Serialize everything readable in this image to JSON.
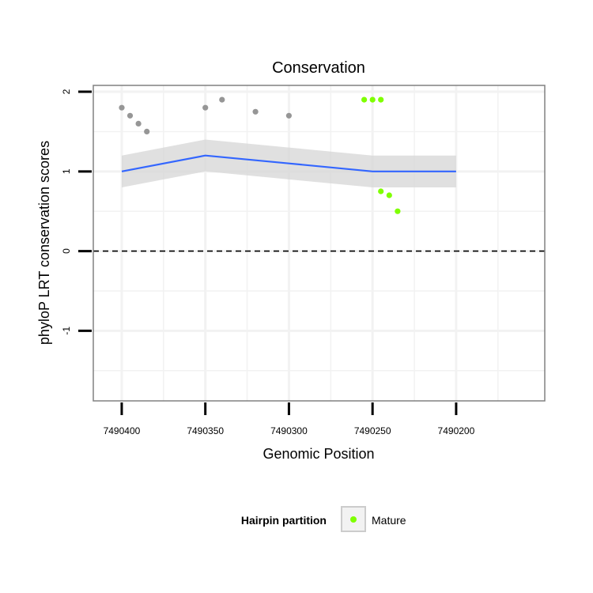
{
  "chart_data": {
    "type": "scatter",
    "title": "Conservation",
    "xlabel": "Genomic Position",
    "ylabel": "phyloP LRT conservation scores",
    "x_reversed": true,
    "xlim": [
      7490417,
      7490147
    ],
    "ylim": [
      -1.88,
      2.08
    ],
    "x_ticks": [
      7490400,
      7490350,
      7490300,
      7490250,
      7490200
    ],
    "x_tick_labels": [
      "7490400",
      "7490350",
      "7490300",
      "7490250",
      "7490200"
    ],
    "y_ticks": [
      -1,
      0,
      1,
      2
    ],
    "y_tick_labels": [
      "-1",
      "0",
      "1",
      "2"
    ],
    "grid": true,
    "reference_line": {
      "y": 0,
      "style": "dashed"
    },
    "legend": {
      "title": "Hairpin partition",
      "entries": [
        {
          "label": "Mature",
          "color": "#7fff00"
        }
      ],
      "position": "bottom"
    },
    "colors": {
      "background_points": "#969696",
      "mature_points": "#7fff00",
      "smooth_line": "#3366ff",
      "confidence_band": "#d6d6d6",
      "panel_border": "#808080",
      "grid": "#f2f2f2"
    },
    "series": [
      {
        "role": "background",
        "points": [
          [
            7490400,
            1.8
          ],
          [
            7490395,
            1.7
          ],
          [
            7490390,
            1.6
          ],
          [
            7490385,
            1.5
          ],
          [
            7490350,
            1.8
          ],
          [
            7490340,
            1.9
          ],
          [
            7490320,
            1.75
          ],
          [
            7490300,
            1.7
          ]
        ]
      },
      {
        "name": "Mature",
        "points": [
          [
            7490255,
            1.9
          ],
          [
            7490250,
            1.9
          ],
          [
            7490245,
            1.9
          ],
          [
            7490245,
            0.75
          ],
          [
            7490240,
            0.7
          ],
          [
            7490235,
            0.5
          ]
        ]
      }
    ],
    "smooth": {
      "x": [
        7490400,
        7490350,
        7490300,
        7490250,
        7490200
      ],
      "y": [
        1.0,
        1.2,
        1.1,
        1.0,
        1.0
      ],
      "band_lower": [
        0.8,
        1.0,
        0.9,
        0.8,
        0.8
      ],
      "band_upper": [
        1.2,
        1.4,
        1.3,
        1.2,
        1.2
      ]
    }
  }
}
